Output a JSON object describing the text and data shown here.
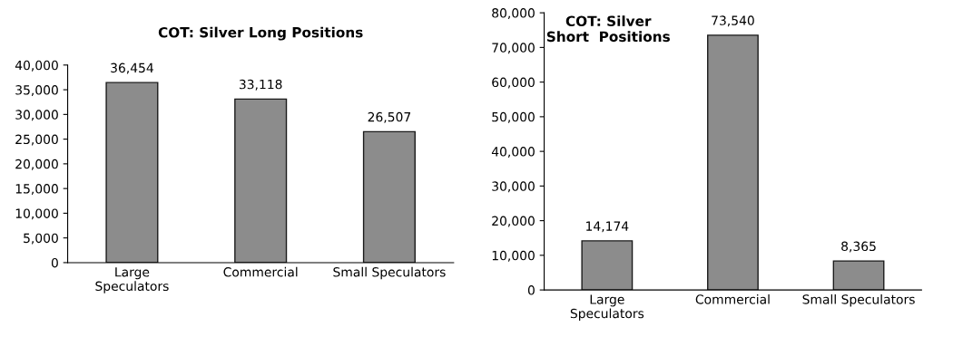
{
  "chart_data": [
    {
      "type": "bar",
      "title": "COT: Silver Long Positions",
      "categories": [
        "Large\nSpeculators",
        "Commercial",
        "Small Speculators"
      ],
      "values": [
        36454,
        33118,
        26507
      ],
      "value_labels": [
        "36,454",
        "33,118",
        "26,507"
      ],
      "color": "#8c8c8c",
      "ylim": [
        0,
        40000
      ],
      "yticks": [
        0,
        {
          "value": 5000,
          "label": "5,000"
        },
        {
          "value": 10000,
          "label": "10,000"
        },
        {
          "value": 15000,
          "label": "15,000"
        },
        {
          "value": 20000,
          "label": "20,000"
        },
        {
          "value": 25000,
          "label": "25,000"
        },
        {
          "value": 30000,
          "label": "30,000"
        },
        {
          "value": 35000,
          "label": "35,000"
        },
        {
          "value": 40000,
          "label": "40,000"
        }
      ],
      "grid": false,
      "legend": false
    },
    {
      "type": "bar",
      "title": "COT: Silver\nShort  Positions",
      "categories": [
        "Large\nSpeculators",
        "Commercial",
        "Small Speculators"
      ],
      "values": [
        14174,
        73540,
        8365
      ],
      "value_labels": [
        "14,174",
        "73,540",
        "8,365"
      ],
      "color": "#8c8c8c",
      "ylim": [
        0,
        80000
      ],
      "yticks": [
        0,
        {
          "value": 10000,
          "label": "10,000"
        },
        {
          "value": 20000,
          "label": "20,000"
        },
        {
          "value": 30000,
          "label": "30,000"
        },
        {
          "value": 40000,
          "label": "40,000"
        },
        {
          "value": 50000,
          "label": "50,000"
        },
        {
          "value": 60000,
          "label": "60,000"
        },
        {
          "value": 70000,
          "label": "70,000"
        },
        {
          "value": 80000,
          "label": "80,000"
        }
      ],
      "grid": false,
      "legend": false
    }
  ]
}
